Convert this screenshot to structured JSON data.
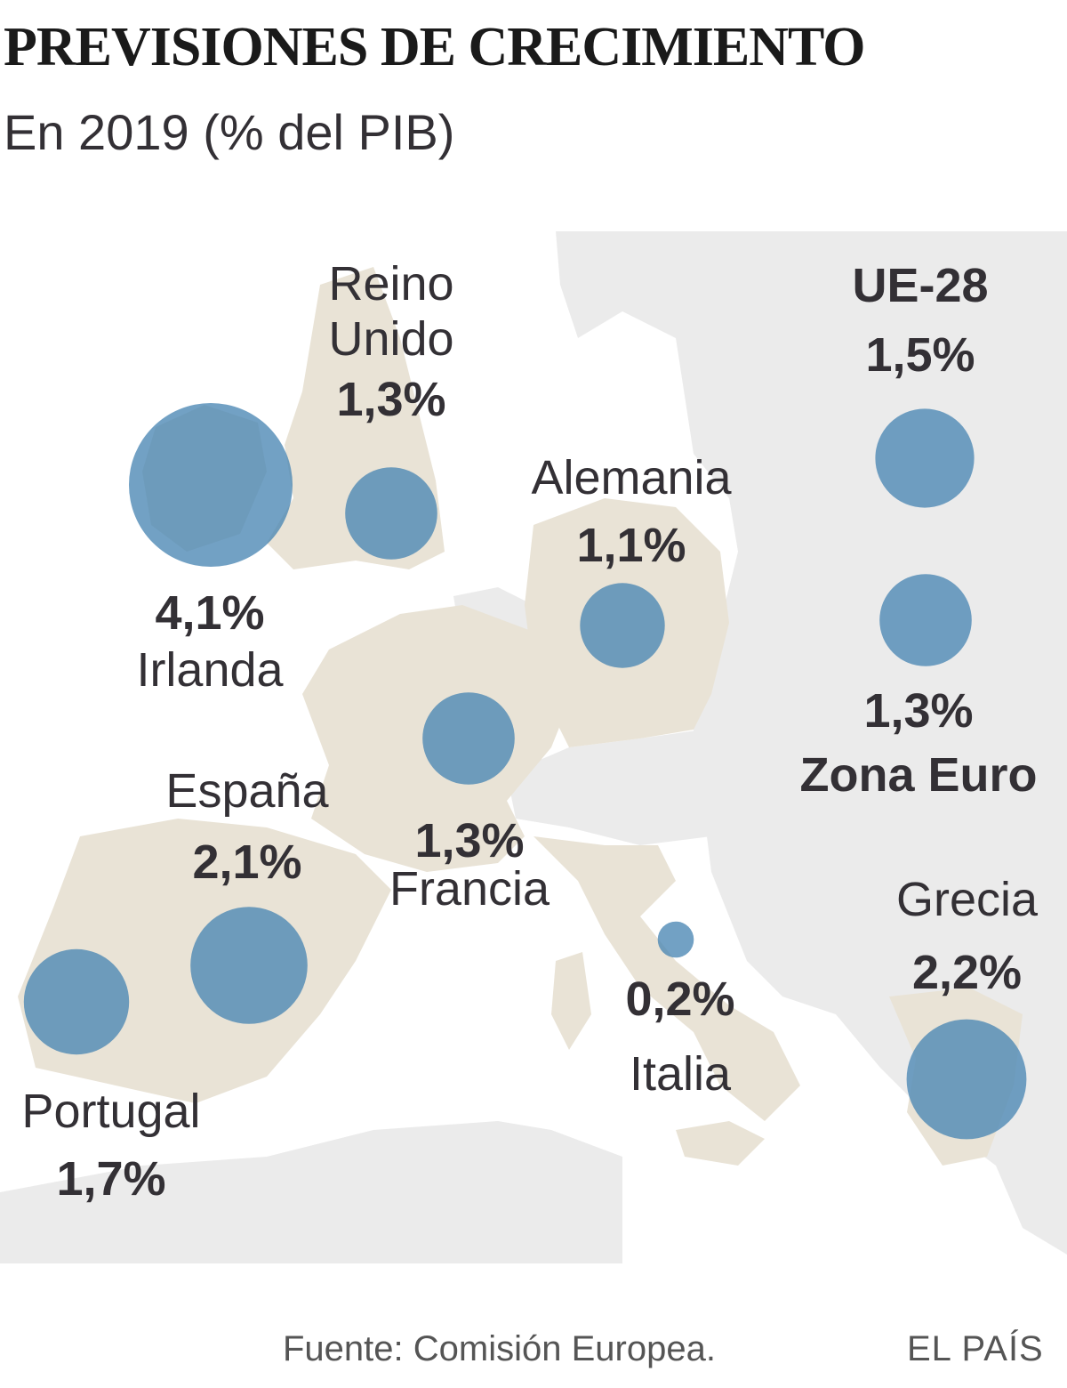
{
  "title": "PREVISIONES DE CRECIMIENTO",
  "subtitle": "En 2019 (% del PIB)",
  "colors": {
    "land_highlight": "#e9e3d6",
    "land_other": "#ebebeb",
    "sea": "#ffffff",
    "bubble": "#4a86b4",
    "text": "#333035"
  },
  "regions": [
    {
      "name": "Reino Unido",
      "name_lines": [
        "Reino",
        "Unido"
      ],
      "value": "1,3%",
      "growth": 1.3
    },
    {
      "name": "Irlanda",
      "value": "4,1%",
      "growth": 4.1
    },
    {
      "name": "Alemania",
      "value": "1,1%",
      "growth": 1.1
    },
    {
      "name": "Francia",
      "value": "1,3%",
      "growth": 1.3
    },
    {
      "name": "España",
      "value": "2,1%",
      "growth": 2.1
    },
    {
      "name": "Portugal",
      "value": "1,7%",
      "growth": 1.7
    },
    {
      "name": "Italia",
      "value": "0,2%",
      "growth": 0.2
    },
    {
      "name": "Grecia",
      "value": "2,2%",
      "growth": 2.2
    },
    {
      "name": "UE-28",
      "value": "1,5%",
      "growth": 1.5
    },
    {
      "name": "Zona Euro",
      "value": "1,3%",
      "growth": 1.3
    }
  ],
  "source": "Fuente: Comisión Europea.",
  "brand": "EL PAÍS"
}
